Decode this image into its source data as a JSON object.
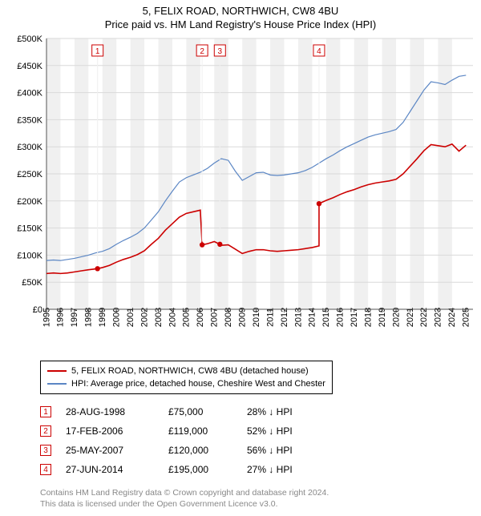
{
  "title": {
    "line1": "5, FELIX ROAD, NORTHWICH, CW8 4BU",
    "line2": "Price paid vs. HM Land Registry's House Price Index (HPI)"
  },
  "chart": {
    "type": "line",
    "plot_background": "#ffffff",
    "grid_color": "#d9d9d9",
    "band_color": "#f0f0f0",
    "axis_color": "#555555",
    "x_domain": [
      1995,
      2025.5
    ],
    "y_domain": [
      0,
      500000
    ],
    "y_ticks": [
      0,
      50000,
      100000,
      150000,
      200000,
      250000,
      300000,
      350000,
      400000,
      450000,
      500000
    ],
    "y_tick_labels": [
      "£0",
      "£50K",
      "£100K",
      "£150K",
      "£200K",
      "£250K",
      "£300K",
      "£350K",
      "£400K",
      "£450K",
      "£500K"
    ],
    "x_ticks": [
      1995,
      1996,
      1997,
      1998,
      1999,
      2000,
      2001,
      2002,
      2003,
      2004,
      2005,
      2006,
      2007,
      2008,
      2009,
      2010,
      2011,
      2012,
      2013,
      2014,
      2015,
      2016,
      2017,
      2018,
      2019,
      2020,
      2021,
      2022,
      2023,
      2024,
      2025
    ],
    "x_tick_labels": [
      "1995",
      "1996",
      "1997",
      "1998",
      "1999",
      "2000",
      "2001",
      "2002",
      "2003",
      "2004",
      "2005",
      "2006",
      "2007",
      "2008",
      "2009",
      "2010",
      "2011",
      "2012",
      "2013",
      "2014",
      "2015",
      "2016",
      "2017",
      "2018",
      "2019",
      "2020",
      "2021",
      "2022",
      "2023",
      "2024",
      "2025"
    ],
    "x_bands": [
      [
        1995,
        1996
      ],
      [
        1997,
        1998
      ],
      [
        1999,
        2000
      ],
      [
        2001,
        2002
      ],
      [
        2003,
        2004
      ],
      [
        2005,
        2006
      ],
      [
        2007,
        2008
      ],
      [
        2009,
        2010
      ],
      [
        2011,
        2012
      ],
      [
        2013,
        2014
      ],
      [
        2015,
        2016
      ],
      [
        2017,
        2018
      ],
      [
        2019,
        2020
      ],
      [
        2021,
        2022
      ],
      [
        2023,
        2024
      ]
    ],
    "series": [
      {
        "name": "hpi",
        "label": "HPI: Average price, detached house, Cheshire West and Chester",
        "color": "#5b86c4",
        "line_width": 1.2,
        "points": [
          [
            1995.0,
            90000
          ],
          [
            1995.5,
            91000
          ],
          [
            1996.0,
            90000
          ],
          [
            1996.5,
            92000
          ],
          [
            1997.0,
            94000
          ],
          [
            1997.5,
            97000
          ],
          [
            1998.0,
            100000
          ],
          [
            1998.5,
            104000
          ],
          [
            1999.0,
            107000
          ],
          [
            1999.5,
            112000
          ],
          [
            2000.0,
            120000
          ],
          [
            2000.5,
            127000
          ],
          [
            2001.0,
            133000
          ],
          [
            2001.5,
            140000
          ],
          [
            2002.0,
            150000
          ],
          [
            2002.5,
            165000
          ],
          [
            2003.0,
            180000
          ],
          [
            2003.5,
            200000
          ],
          [
            2004.0,
            218000
          ],
          [
            2004.5,
            235000
          ],
          [
            2005.0,
            243000
          ],
          [
            2005.5,
            248000
          ],
          [
            2006.0,
            253000
          ],
          [
            2006.5,
            260000
          ],
          [
            2007.0,
            270000
          ],
          [
            2007.5,
            278000
          ],
          [
            2008.0,
            275000
          ],
          [
            2008.5,
            255000
          ],
          [
            2009.0,
            238000
          ],
          [
            2009.5,
            245000
          ],
          [
            2010.0,
            252000
          ],
          [
            2010.5,
            253000
          ],
          [
            2011.0,
            248000
          ],
          [
            2011.5,
            247000
          ],
          [
            2012.0,
            248000
          ],
          [
            2012.5,
            250000
          ],
          [
            2013.0,
            252000
          ],
          [
            2013.5,
            256000
          ],
          [
            2014.0,
            262000
          ],
          [
            2014.5,
            270000
          ],
          [
            2015.0,
            278000
          ],
          [
            2015.5,
            285000
          ],
          [
            2016.0,
            293000
          ],
          [
            2016.5,
            300000
          ],
          [
            2017.0,
            306000
          ],
          [
            2017.5,
            312000
          ],
          [
            2018.0,
            318000
          ],
          [
            2018.5,
            322000
          ],
          [
            2019.0,
            325000
          ],
          [
            2019.5,
            328000
          ],
          [
            2020.0,
            332000
          ],
          [
            2020.5,
            345000
          ],
          [
            2021.0,
            365000
          ],
          [
            2021.5,
            385000
          ],
          [
            2022.0,
            405000
          ],
          [
            2022.5,
            420000
          ],
          [
            2023.0,
            418000
          ],
          [
            2023.5,
            415000
          ],
          [
            2024.0,
            423000
          ],
          [
            2024.5,
            430000
          ],
          [
            2025.0,
            432000
          ]
        ]
      },
      {
        "name": "property",
        "label": "5, FELIX ROAD, NORTHWICH, CW8 4BU (detached house)",
        "color": "#cc0000",
        "line_width": 1.6,
        "points": [
          [
            1995.0,
            66000
          ],
          [
            1995.5,
            67000
          ],
          [
            1996.0,
            66000
          ],
          [
            1996.5,
            67000
          ],
          [
            1997.0,
            69000
          ],
          [
            1997.5,
            71000
          ],
          [
            1998.0,
            73000
          ],
          [
            1998.65,
            75000
          ],
          [
            1999.0,
            77000
          ],
          [
            1999.5,
            81000
          ],
          [
            2000.0,
            87000
          ],
          [
            2000.5,
            92000
          ],
          [
            2001.0,
            96000
          ],
          [
            2001.5,
            101000
          ],
          [
            2002.0,
            108000
          ],
          [
            2002.5,
            120000
          ],
          [
            2003.0,
            131000
          ],
          [
            2003.5,
            146000
          ],
          [
            2004.0,
            158000
          ],
          [
            2004.5,
            170000
          ],
          [
            2005.0,
            177000
          ],
          [
            2005.5,
            180000
          ],
          [
            2006.0,
            183000
          ],
          [
            2006.13,
            119000
          ],
          [
            2006.5,
            121000
          ],
          [
            2007.0,
            125000
          ],
          [
            2007.4,
            120000
          ],
          [
            2007.5,
            118000
          ],
          [
            2008.0,
            119000
          ],
          [
            2008.5,
            111000
          ],
          [
            2009.0,
            103000
          ],
          [
            2009.5,
            107000
          ],
          [
            2010.0,
            110000
          ],
          [
            2010.5,
            110000
          ],
          [
            2011.0,
            108000
          ],
          [
            2011.5,
            107000
          ],
          [
            2012.0,
            108000
          ],
          [
            2012.5,
            109000
          ],
          [
            2013.0,
            110000
          ],
          [
            2013.5,
            112000
          ],
          [
            2014.0,
            114000
          ],
          [
            2014.49,
            117000
          ],
          [
            2014.49,
            195000
          ],
          [
            2015.0,
            201000
          ],
          [
            2015.5,
            206000
          ],
          [
            2016.0,
            212000
          ],
          [
            2016.5,
            217000
          ],
          [
            2017.0,
            221000
          ],
          [
            2017.5,
            226000
          ],
          [
            2018.0,
            230000
          ],
          [
            2018.5,
            233000
          ],
          [
            2019.0,
            235000
          ],
          [
            2019.5,
            237000
          ],
          [
            2020.0,
            240000
          ],
          [
            2020.5,
            250000
          ],
          [
            2021.0,
            264000
          ],
          [
            2021.5,
            278000
          ],
          [
            2022.0,
            293000
          ],
          [
            2022.5,
            304000
          ],
          [
            2023.0,
            302000
          ],
          [
            2023.5,
            300000
          ],
          [
            2024.0,
            305000
          ],
          [
            2024.5,
            292000
          ],
          [
            2025.0,
            303000
          ]
        ]
      }
    ],
    "sale_markers": [
      {
        "n": "1",
        "x": 1998.65,
        "y": 75000
      },
      {
        "n": "2",
        "x": 2006.13,
        "y": 119000
      },
      {
        "n": "3",
        "x": 2007.4,
        "y": 120000
      },
      {
        "n": "4",
        "x": 2014.49,
        "y": 195000
      }
    ],
    "marker_box_stroke": "#cc0000",
    "marker_text_color": "#cc0000",
    "label_fontsize": 11
  },
  "legend": {
    "items": [
      {
        "color": "#cc0000",
        "label": "5, FELIX ROAD, NORTHWICH, CW8 4BU (detached house)"
      },
      {
        "color": "#5b86c4",
        "label": "HPI: Average price, detached house, Cheshire West and Chester"
      }
    ]
  },
  "sales": [
    {
      "n": "1",
      "date": "28-AUG-1998",
      "price": "£75,000",
      "diff": "28% ↓ HPI"
    },
    {
      "n": "2",
      "date": "17-FEB-2006",
      "price": "£119,000",
      "diff": "52% ↓ HPI"
    },
    {
      "n": "3",
      "date": "25-MAY-2007",
      "price": "£120,000",
      "diff": "56% ↓ HPI"
    },
    {
      "n": "4",
      "date": "27-JUN-2014",
      "price": "£195,000",
      "diff": "27% ↓ HPI"
    }
  ],
  "attribution": {
    "line1": "Contains HM Land Registry data © Crown copyright and database right 2024.",
    "line2": "This data is licensed under the Open Government Licence v3.0."
  }
}
